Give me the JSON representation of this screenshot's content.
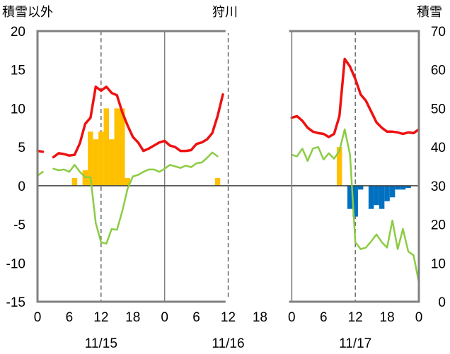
{
  "chart_data": {
    "type": "bar+line",
    "title": "狩川",
    "ylabel_left": "積雪以外",
    "ylabel_right": "積雪",
    "ylim_left": [
      -15,
      20
    ],
    "ylim_right": [
      0,
      70
    ],
    "yticks_left": [
      20,
      15,
      10,
      5,
      0,
      -5,
      -10,
      -15
    ],
    "yticks_right": [
      70,
      60,
      50,
      40,
      30,
      20,
      10,
      0
    ],
    "x_hour_range": [
      0,
      72
    ],
    "xtick_labels": [
      "0",
      "6",
      "12",
      "18",
      "0",
      "6",
      "12",
      "18",
      "0",
      "6",
      "12",
      "18",
      "0"
    ],
    "date_labels": [
      "11/15",
      "11/16",
      "11/17"
    ],
    "grid": "dashed vertical at 12:00, solid vertical at day boundaries",
    "colors": {
      "red_line": "#ee1111",
      "green_line": "#8ccc44",
      "yellow_bars": "#ffc000",
      "blue_bars": "#0070c0",
      "purple_line": "#7030a0",
      "frame": "#808080"
    },
    "red_line": [
      [
        [
          0,
          4.5
        ],
        [
          1,
          4.4
        ]
      ],
      [
        [
          3,
          3.7
        ],
        [
          4,
          4.2
        ],
        [
          5,
          4.1
        ],
        [
          6,
          3.9
        ],
        [
          7,
          4.0
        ],
        [
          8,
          5.5
        ],
        [
          9,
          8.0
        ],
        [
          10,
          8.8
        ],
        [
          11,
          12.8
        ],
        [
          12,
          12.3
        ],
        [
          13,
          12.8
        ],
        [
          14,
          12.0
        ],
        [
          15,
          11.7
        ],
        [
          16,
          9.5
        ],
        [
          17,
          7.8
        ],
        [
          18,
          6.3
        ],
        [
          19,
          5.6
        ],
        [
          20,
          4.5
        ],
        [
          21,
          4.8
        ],
        [
          22,
          5.2
        ],
        [
          23,
          5.6
        ],
        [
          24,
          5.8
        ],
        [
          25,
          5.2
        ],
        [
          26,
          5.0
        ],
        [
          27,
          4.5
        ],
        [
          28,
          4.5
        ],
        [
          29,
          4.6
        ],
        [
          30,
          5.4
        ],
        [
          31,
          5.6
        ],
        [
          32,
          6.0
        ],
        [
          33,
          6.8
        ],
        [
          34,
          9.0
        ],
        [
          35,
          11.8
        ]
      ],
      [
        [
          48,
          8.8
        ],
        [
          49,
          9.0
        ],
        [
          50,
          8.4
        ],
        [
          51,
          7.5
        ],
        [
          52,
          7.0
        ],
        [
          53,
          6.8
        ],
        [
          54,
          6.7
        ],
        [
          55,
          6.3
        ],
        [
          56,
          6.7
        ],
        [
          57,
          9.0
        ],
        [
          58,
          16.4
        ],
        [
          59,
          15.4
        ],
        [
          60,
          13.8
        ],
        [
          61,
          11.8
        ],
        [
          62,
          11.0
        ],
        [
          63,
          9.6
        ],
        [
          64,
          8.2
        ],
        [
          65,
          7.5
        ],
        [
          66,
          7.0
        ],
        [
          67,
          7.0
        ],
        [
          68,
          6.9
        ],
        [
          69,
          6.7
        ],
        [
          70,
          6.9
        ],
        [
          71,
          6.8
        ],
        [
          72,
          7.3
        ]
      ]
    ],
    "green_line": [
      [
        [
          0,
          1.3
        ],
        [
          1,
          1.8
        ]
      ],
      [
        [
          3,
          2.2
        ],
        [
          4,
          2.0
        ],
        [
          5,
          2.1
        ],
        [
          6,
          1.8
        ],
        [
          7,
          2.7
        ],
        [
          8,
          1.8
        ],
        [
          9,
          1.1
        ],
        [
          10,
          1.1
        ],
        [
          11,
          -4.8
        ],
        [
          12,
          -7.3
        ],
        [
          13,
          -7.5
        ],
        [
          14,
          -5.6
        ],
        [
          15,
          -5.7
        ],
        [
          16,
          -3.3
        ],
        [
          17,
          -0.4
        ],
        [
          18,
          1.2
        ],
        [
          19,
          1.4
        ],
        [
          20,
          1.8
        ],
        [
          21,
          2.1
        ],
        [
          22,
          2.1
        ],
        [
          23,
          1.8
        ],
        [
          24,
          2.2
        ],
        [
          25,
          2.7
        ],
        [
          26,
          2.5
        ],
        [
          27,
          2.3
        ],
        [
          28,
          2.6
        ],
        [
          29,
          2.4
        ],
        [
          30,
          2.9
        ],
        [
          31,
          3.0
        ],
        [
          32,
          3.6
        ],
        [
          33,
          4.3
        ],
        [
          34,
          3.8
        ]
      ],
      [
        [
          48,
          4.0
        ],
        [
          49,
          3.8
        ],
        [
          50,
          4.8
        ],
        [
          51,
          3.2
        ],
        [
          52,
          4.8
        ],
        [
          53,
          5.0
        ],
        [
          54,
          3.4
        ],
        [
          55,
          4.2
        ],
        [
          56,
          3.5
        ],
        [
          57,
          4.5
        ],
        [
          58,
          7.3
        ],
        [
          59,
          4.0
        ],
        [
          60,
          -7.3
        ],
        [
          61,
          -8.2
        ],
        [
          62,
          -8.0
        ],
        [
          63,
          -7.2
        ],
        [
          64,
          -6.3
        ],
        [
          65,
          -7.3
        ],
        [
          66,
          -8.0
        ],
        [
          67,
          -4.5
        ],
        [
          68,
          -8.2
        ],
        [
          69,
          -5.6
        ],
        [
          70,
          -8.5
        ],
        [
          71,
          -9.0
        ],
        [
          72,
          -12.5
        ]
      ]
    ],
    "purple_line": [
      [
        [
          0,
          -15
        ],
        [
          34,
          -15
        ]
      ],
      [
        [
          48,
          -15
        ],
        [
          72,
          -15
        ]
      ]
    ],
    "yellow_bars": [
      [
        7,
        1.0
      ],
      [
        9,
        2.0
      ],
      [
        10,
        7.0
      ],
      [
        11,
        6.0
      ],
      [
        12,
        7.0
      ],
      [
        13,
        10.0
      ],
      [
        14,
        6.0
      ],
      [
        15,
        10.0
      ],
      [
        16,
        10.0
      ],
      [
        17,
        1.0
      ],
      [
        34,
        1.0
      ],
      [
        57,
        5.0
      ]
    ],
    "blue_bars": [
      [
        59,
        -3.0
      ],
      [
        60,
        -4.0
      ],
      [
        61,
        -0.5
      ],
      [
        63,
        -3.0
      ],
      [
        64,
        -2.5
      ],
      [
        65,
        -3.0
      ],
      [
        66,
        -2.0
      ],
      [
        67,
        -1.5
      ],
      [
        68,
        -0.5
      ],
      [
        69,
        -0.5
      ],
      [
        70,
        -0.3
      ]
    ]
  }
}
